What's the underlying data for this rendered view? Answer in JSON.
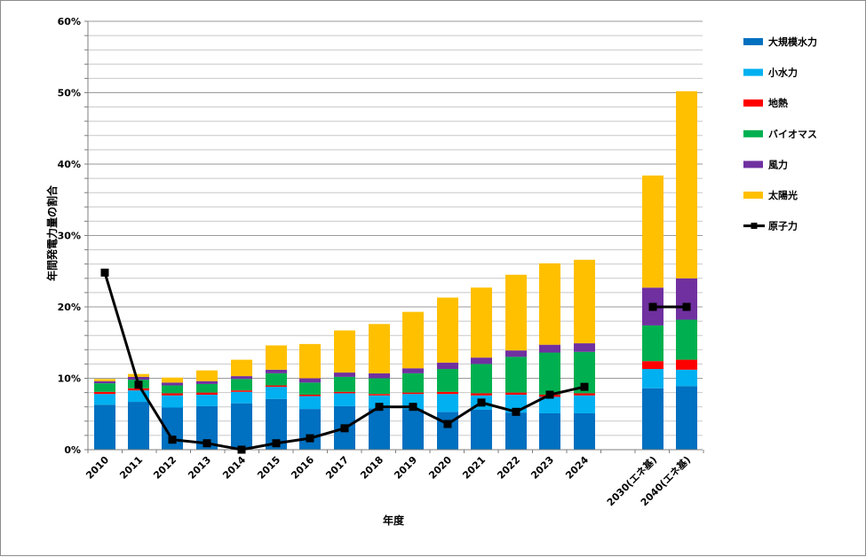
{
  "chart_data": {
    "type": "bar",
    "stacked": true,
    "title": "",
    "xlabel": "年度",
    "ylabel": "年間発電力量の割合",
    "ylim": [
      0,
      60
    ],
    "ytick_step": 10,
    "yminor_step": 2,
    "ytick_labels": [
      "0%",
      "10%",
      "20%",
      "30%",
      "40%",
      "50%",
      "60%"
    ],
    "grid": true,
    "legend_position": "right",
    "categories": [
      "2010",
      "2011",
      "2012",
      "2013",
      "2014",
      "2015",
      "2016",
      "2017",
      "2018",
      "2019",
      "2020",
      "2021",
      "2022",
      "2023",
      "2024",
      "2030(エネ基)",
      "2040(エネ基)"
    ],
    "series": [
      {
        "name": "大規模水力",
        "color": "#0070C0",
        "kind": "bar",
        "values": [
          6.3,
          6.7,
          5.9,
          6.1,
          6.5,
          7.1,
          5.7,
          6.1,
          5.8,
          5.7,
          5.3,
          5.6,
          5.2,
          5.1,
          5.1,
          8.6,
          8.9
        ]
      },
      {
        "name": "小水力",
        "color": "#00B0F0",
        "kind": "bar",
        "values": [
          1.5,
          1.6,
          1.7,
          1.6,
          1.6,
          1.7,
          1.8,
          1.8,
          1.8,
          2.1,
          2.5,
          2.0,
          2.5,
          2.3,
          2.5,
          2.7,
          2.3
        ]
      },
      {
        "name": "地熱",
        "color": "#FF0000",
        "kind": "bar",
        "values": [
          0.3,
          0.3,
          0.3,
          0.3,
          0.2,
          0.2,
          0.2,
          0.2,
          0.2,
          0.2,
          0.3,
          0.3,
          0.3,
          0.3,
          0.3,
          1.1,
          1.4
        ]
      },
      {
        "name": "バイオマス",
        "color": "#00B050",
        "kind": "bar",
        "values": [
          1.2,
          1.2,
          1.1,
          1.2,
          1.6,
          1.7,
          1.7,
          2.1,
          2.2,
          2.7,
          3.2,
          4.1,
          5.0,
          5.9,
          5.8,
          5.0,
          5.6
        ]
      },
      {
        "name": "風力",
        "color": "#7030A0",
        "kind": "bar",
        "values": [
          0.3,
          0.4,
          0.4,
          0.4,
          0.4,
          0.5,
          0.6,
          0.6,
          0.7,
          0.7,
          0.9,
          0.9,
          0.9,
          1.1,
          1.2,
          5.3,
          5.8
        ]
      },
      {
        "name": "太陽光",
        "color": "#FFC000",
        "kind": "bar",
        "values": [
          0.3,
          0.4,
          0.7,
          1.5,
          2.3,
          3.4,
          4.8,
          5.9,
          6.9,
          7.9,
          9.1,
          9.8,
          10.6,
          11.4,
          11.7,
          15.7,
          26.2
        ]
      },
      {
        "name": "原子力",
        "color": "#000000",
        "kind": "line",
        "values": [
          24.8,
          9.1,
          1.4,
          0.9,
          0.0,
          0.9,
          1.6,
          3.0,
          6.0,
          6.0,
          3.6,
          6.6,
          5.3,
          7.7,
          8.8,
          20.0,
          20.0
        ],
        "segments": [
          [
            0,
            14
          ],
          [
            15,
            16
          ]
        ]
      }
    ]
  }
}
